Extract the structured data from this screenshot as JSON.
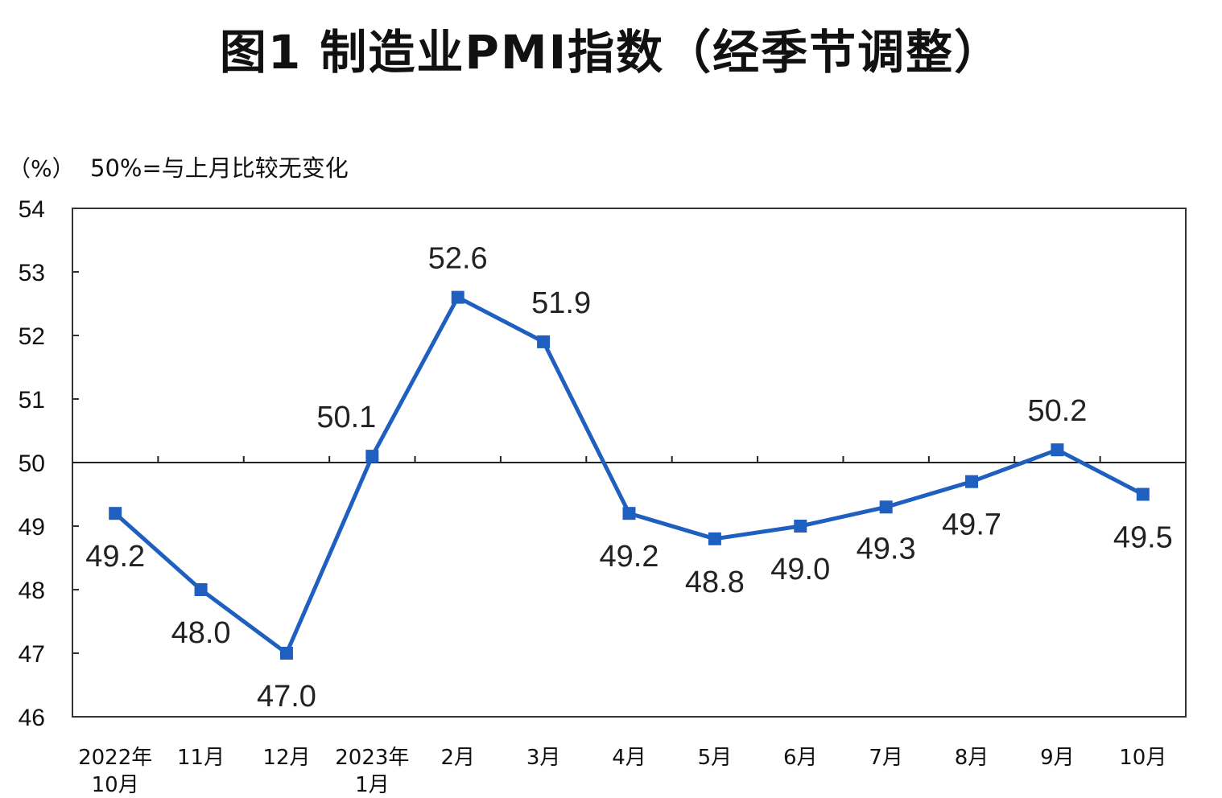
{
  "chart_data": {
    "type": "line",
    "title": "图1  制造业PMI指数（经季节调整）",
    "unit_label": "（%）",
    "note": "50%=与上月比较无变化",
    "categories": [
      [
        "2022年",
        "10月"
      ],
      [
        "11月"
      ],
      [
        "12月"
      ],
      [
        "2023年",
        "1月"
      ],
      [
        "2月"
      ],
      [
        "3月"
      ],
      [
        "4月"
      ],
      [
        "5月"
      ],
      [
        "6月"
      ],
      [
        "7月"
      ],
      [
        "8月"
      ],
      [
        "9月"
      ],
      [
        "10月"
      ]
    ],
    "series": [
      {
        "values": [
          49.2,
          48.0,
          47.0,
          50.1,
          52.6,
          51.9,
          49.2,
          48.8,
          49.0,
          49.3,
          49.7,
          50.2,
          49.5
        ],
        "data_labels": [
          "49.2",
          "48.0",
          "47.0",
          "50.1",
          "52.6",
          "51.9",
          "49.2",
          "48.8",
          "49.0",
          "49.3",
          "49.7",
          "50.2",
          "49.5"
        ],
        "color": "#1f5fbf"
      }
    ],
    "yticks": [
      "46",
      "47",
      "48",
      "49",
      "50",
      "51",
      "52",
      "53",
      "54"
    ],
    "ylim": [
      46,
      54
    ],
    "reference_line": 50,
    "grid": false
  }
}
